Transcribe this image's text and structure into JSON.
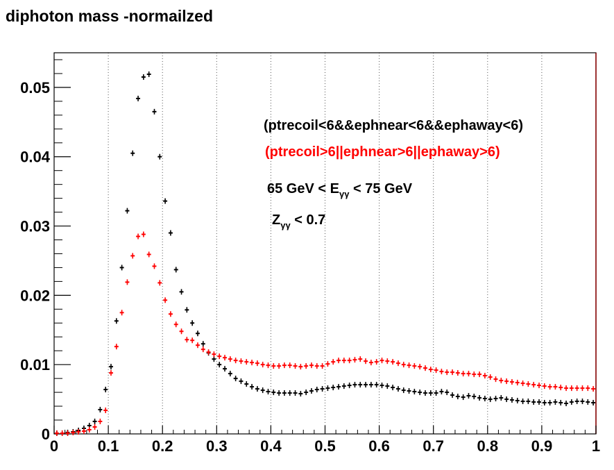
{
  "chart_data": {
    "type": "scatter",
    "title": "diphoton mass -normailzed",
    "xlabel": "",
    "ylabel": "",
    "xlim": [
      0,
      1
    ],
    "ylim": [
      0,
      0.055
    ],
    "x_ticks": [
      "0",
      "0.1",
      "0.2",
      "0.3",
      "0.4",
      "0.5",
      "0.6",
      "0.7",
      "0.8",
      "0.9",
      "1"
    ],
    "y_ticks": [
      "0",
      "0.01",
      "0.02",
      "0.03",
      "0.04",
      "0.05"
    ],
    "grid": "vertical dotted",
    "annotations": {
      "sel_black": "(ptrecoil<6&&ephnear<6&&ephaway<6)",
      "sel_red": "(ptrecoil>6||ephnear>6||ephaway>6)",
      "energy_prefix": "65 GeV < E",
      "energy_sub": "γγ",
      "energy_suffix": " < 75 GeV",
      "z_prefix": "Z",
      "z_sub": "γγ",
      "z_suffix": " < 0.7"
    },
    "series": [
      {
        "color": "#000000",
        "x": [
          0.005,
          0.015,
          0.025,
          0.035,
          0.045,
          0.055,
          0.065,
          0.075,
          0.085,
          0.095,
          0.105,
          0.115,
          0.125,
          0.135,
          0.145,
          0.155,
          0.165,
          0.175,
          0.185,
          0.195,
          0.205,
          0.215,
          0.225,
          0.235,
          0.245,
          0.255,
          0.265,
          0.275,
          0.285,
          0.295,
          0.305,
          0.315,
          0.325,
          0.335,
          0.345,
          0.355,
          0.365,
          0.375,
          0.385,
          0.395,
          0.405,
          0.415,
          0.425,
          0.435,
          0.445,
          0.455,
          0.465,
          0.475,
          0.485,
          0.495,
          0.505,
          0.515,
          0.525,
          0.535,
          0.545,
          0.555,
          0.565,
          0.575,
          0.585,
          0.595,
          0.605,
          0.615,
          0.625,
          0.635,
          0.645,
          0.655,
          0.665,
          0.675,
          0.685,
          0.695,
          0.705,
          0.715,
          0.725,
          0.735,
          0.745,
          0.755,
          0.765,
          0.775,
          0.785,
          0.795,
          0.805,
          0.815,
          0.825,
          0.835,
          0.845,
          0.855,
          0.865,
          0.875,
          0.885,
          0.895,
          0.905,
          0.915,
          0.925,
          0.935,
          0.945,
          0.955,
          0.965,
          0.975,
          0.985,
          0.995
        ],
        "y": [
          0.0001,
          0.0001,
          0.0002,
          0.0003,
          0.0005,
          0.0008,
          0.0012,
          0.0018,
          0.0035,
          0.0064,
          0.0097,
          0.0163,
          0.024,
          0.0322,
          0.0405,
          0.0484,
          0.0515,
          0.0519,
          0.0465,
          0.04,
          0.0336,
          0.029,
          0.0237,
          0.0205,
          0.0179,
          0.016,
          0.0145,
          0.013,
          0.0117,
          0.0108,
          0.01,
          0.0094,
          0.0087,
          0.008,
          0.0076,
          0.0072,
          0.0068,
          0.0065,
          0.0063,
          0.0061,
          0.006,
          0.0059,
          0.0059,
          0.0059,
          0.0059,
          0.0058,
          0.006,
          0.0062,
          0.0064,
          0.0065,
          0.0066,
          0.0067,
          0.0068,
          0.0069,
          0.007,
          0.0071,
          0.0071,
          0.0071,
          0.0071,
          0.0071,
          0.007,
          0.0069,
          0.0067,
          0.0065,
          0.0063,
          0.0062,
          0.0061,
          0.006,
          0.0059,
          0.0059,
          0.0059,
          0.0061,
          0.006,
          0.0056,
          0.0054,
          0.0053,
          0.0055,
          0.0054,
          0.0052,
          0.0051,
          0.005,
          0.0051,
          0.0052,
          0.005,
          0.0049,
          0.0048,
          0.0047,
          0.0047,
          0.0046,
          0.0046,
          0.0045,
          0.0045,
          0.0046,
          0.0045,
          0.0044,
          0.0046,
          0.0047,
          0.0047,
          0.0046,
          0.0045
        ]
      },
      {
        "color": "#ff0000",
        "x": [
          0.005,
          0.015,
          0.025,
          0.035,
          0.045,
          0.055,
          0.065,
          0.075,
          0.085,
          0.095,
          0.105,
          0.115,
          0.125,
          0.135,
          0.145,
          0.155,
          0.165,
          0.175,
          0.185,
          0.195,
          0.205,
          0.215,
          0.225,
          0.235,
          0.245,
          0.255,
          0.265,
          0.275,
          0.285,
          0.295,
          0.305,
          0.315,
          0.325,
          0.335,
          0.345,
          0.355,
          0.365,
          0.375,
          0.385,
          0.395,
          0.405,
          0.415,
          0.425,
          0.435,
          0.445,
          0.455,
          0.465,
          0.475,
          0.485,
          0.495,
          0.505,
          0.515,
          0.525,
          0.535,
          0.545,
          0.555,
          0.565,
          0.575,
          0.585,
          0.595,
          0.605,
          0.615,
          0.625,
          0.635,
          0.645,
          0.655,
          0.665,
          0.675,
          0.685,
          0.695,
          0.705,
          0.715,
          0.725,
          0.735,
          0.745,
          0.755,
          0.765,
          0.775,
          0.785,
          0.795,
          0.805,
          0.815,
          0.825,
          0.835,
          0.845,
          0.855,
          0.865,
          0.875,
          0.885,
          0.895,
          0.905,
          0.915,
          0.925,
          0.935,
          0.945,
          0.955,
          0.965,
          0.975,
          0.985,
          0.995
        ],
        "y": [
          0.0001,
          0.0001,
          0.0001,
          0.0002,
          0.0003,
          0.0004,
          0.0006,
          0.001,
          0.0018,
          0.0034,
          0.0088,
          0.0126,
          0.0175,
          0.0219,
          0.0257,
          0.0285,
          0.0288,
          0.0259,
          0.0242,
          0.0218,
          0.0193,
          0.0173,
          0.0158,
          0.0148,
          0.0136,
          0.0135,
          0.0128,
          0.0122,
          0.0118,
          0.0115,
          0.0112,
          0.011,
          0.0108,
          0.0106,
          0.0105,
          0.0104,
          0.0103,
          0.0102,
          0.01,
          0.0099,
          0.0098,
          0.0098,
          0.0099,
          0.0099,
          0.0098,
          0.0097,
          0.0098,
          0.0099,
          0.0098,
          0.0098,
          0.0101,
          0.0104,
          0.0106,
          0.0106,
          0.0106,
          0.0107,
          0.0108,
          0.0105,
          0.0103,
          0.0104,
          0.0106,
          0.0105,
          0.0104,
          0.0102,
          0.01,
          0.0099,
          0.0098,
          0.0097,
          0.0095,
          0.0093,
          0.0092,
          0.009,
          0.0089,
          0.0089,
          0.0088,
          0.0087,
          0.0087,
          0.0086,
          0.0086,
          0.0084,
          0.0082,
          0.0079,
          0.0077,
          0.0076,
          0.0075,
          0.0074,
          0.0073,
          0.0072,
          0.0071,
          0.007,
          0.0069,
          0.0068,
          0.0068,
          0.0067,
          0.0066,
          0.0066,
          0.0066,
          0.0066,
          0.0066,
          0.0065
        ]
      }
    ]
  }
}
